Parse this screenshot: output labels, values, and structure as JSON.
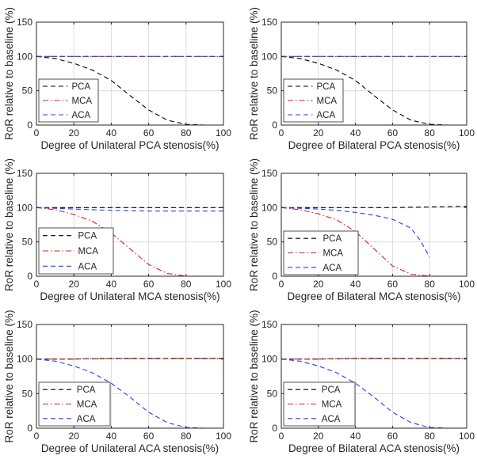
{
  "chart_data": [
    {
      "type": "line",
      "xlabel": "Degree of Unilateral PCA stenosis(%)",
      "ylabel": "RoR relative to baseline (%)",
      "xlim": [
        0,
        100
      ],
      "ylim": [
        0,
        150
      ],
      "xticks": [
        "0",
        "20",
        "40",
        "60",
        "80",
        "100"
      ],
      "yticks": [
        "0",
        "50",
        "100",
        "150"
      ],
      "grid": true,
      "legend_position": "bottom-left",
      "series": [
        {
          "name": "PCA",
          "color": "#000000",
          "dash": "dashed",
          "x": [
            0,
            10,
            20,
            30,
            40,
            50,
            60,
            70,
            80,
            90,
            100
          ],
          "y": [
            100,
            97,
            90,
            80,
            65,
            43,
            22,
            7,
            1,
            0,
            0
          ]
        },
        {
          "name": "MCA",
          "color": "#e41a1c",
          "dash": "dashdot",
          "x": [
            0,
            20,
            40,
            60,
            80,
            100
          ],
          "y": [
            100,
            100,
            100,
            100,
            100,
            100
          ]
        },
        {
          "name": "ACA",
          "color": "#1f3fff",
          "dash": "dashed",
          "x": [
            0,
            20,
            40,
            60,
            80,
            100
          ],
          "y": [
            100,
            100,
            100,
            100,
            100,
            100
          ]
        }
      ]
    },
    {
      "type": "line",
      "xlabel": "Degree of Bilateral PCA stenosis(%)",
      "ylabel": "RoR relative to baseline (%)",
      "xlim": [
        0,
        100
      ],
      "ylim": [
        0,
        150
      ],
      "xticks": [
        "0",
        "20",
        "40",
        "60",
        "80",
        "100"
      ],
      "yticks": [
        "0",
        "50",
        "100",
        "150"
      ],
      "grid": true,
      "legend_position": "bottom-left",
      "series": [
        {
          "name": "PCA",
          "color": "#000000",
          "dash": "dashed",
          "x": [
            0,
            10,
            20,
            30,
            40,
            50,
            60,
            70,
            80,
            90,
            100
          ],
          "y": [
            100,
            97,
            90,
            80,
            65,
            43,
            22,
            7,
            1,
            0,
            0
          ]
        },
        {
          "name": "MCA",
          "color": "#e41a1c",
          "dash": "dashdot",
          "x": [
            0,
            20,
            40,
            60,
            80,
            100
          ],
          "y": [
            100,
            100,
            100,
            100,
            100,
            100
          ]
        },
        {
          "name": "ACA",
          "color": "#1f3fff",
          "dash": "dashed",
          "x": [
            0,
            20,
            40,
            60,
            80,
            100
          ],
          "y": [
            100,
            100,
            100,
            100,
            100,
            100
          ]
        }
      ]
    },
    {
      "type": "line",
      "xlabel": "Degree of Unilateral MCA stenosis(%)",
      "ylabel": "RoR relative to baseline (%)",
      "xlim": [
        0,
        100
      ],
      "ylim": [
        0,
        150
      ],
      "xticks": [
        "0",
        "20",
        "40",
        "60",
        "80",
        "100"
      ],
      "yticks": [
        "0",
        "50",
        "100",
        "150"
      ],
      "grid": true,
      "legend_position": "bottom-left",
      "series": [
        {
          "name": "PCA",
          "color": "#000000",
          "dash": "dashed",
          "x": [
            0,
            20,
            40,
            60,
            80,
            100
          ],
          "y": [
            100,
            100,
            100,
            100,
            100,
            100
          ]
        },
        {
          "name": "MCA",
          "color": "#e41a1c",
          "dash": "dashdot",
          "x": [
            0,
            10,
            20,
            30,
            40,
            50,
            60,
            70,
            80,
            90,
            100
          ],
          "y": [
            100,
            97,
            90,
            80,
            63,
            40,
            17,
            4,
            0,
            0,
            0
          ]
        },
        {
          "name": "ACA",
          "color": "#1f3fff",
          "dash": "dashed",
          "x": [
            0,
            10,
            20,
            30,
            40,
            50,
            60,
            70,
            80,
            90,
            100
          ],
          "y": [
            100,
            99,
            98,
            97,
            96,
            95.5,
            95,
            95,
            95,
            95,
            95
          ]
        }
      ]
    },
    {
      "type": "line",
      "xlabel": "Degree of Bilateral MCA stenosis(%)",
      "ylabel": "RoR relative to baseline (%)",
      "xlim": [
        0,
        100
      ],
      "ylim": [
        0,
        150
      ],
      "xticks": [
        "0",
        "20",
        "40",
        "60",
        "80",
        "100"
      ],
      "yticks": [
        "0",
        "50",
        "100",
        "150"
      ],
      "grid": true,
      "legend_position": "bottom-left",
      "series": [
        {
          "name": "PCA",
          "color": "#000000",
          "dash": "dashed",
          "x": [
            0,
            20,
            40,
            60,
            80,
            100
          ],
          "y": [
            100,
            100,
            100,
            100,
            101,
            102
          ]
        },
        {
          "name": "MCA",
          "color": "#e41a1c",
          "dash": "dashdot",
          "x": [
            0,
            10,
            20,
            30,
            40,
            50,
            60,
            70,
            80,
            90,
            100
          ],
          "y": [
            100,
            97,
            91,
            82,
            65,
            40,
            15,
            3,
            0,
            0,
            0
          ]
        },
        {
          "name": "ACA",
          "color": "#1f3fff",
          "dash": "dashed",
          "x": [
            0,
            10,
            20,
            30,
            40,
            50,
            60,
            70,
            75,
            80
          ],
          "y": [
            100,
            99,
            98,
            96,
            93,
            89,
            83,
            70,
            52,
            28
          ]
        }
      ]
    },
    {
      "type": "line",
      "xlabel": "Degree of Unilateral ACA stenosis(%)",
      "ylabel": "RoR relative to baseline (%)",
      "xlim": [
        0,
        100
      ],
      "ylim": [
        0,
        150
      ],
      "xticks": [
        "0",
        "20",
        "40",
        "60",
        "80",
        "100"
      ],
      "yticks": [
        "0",
        "50",
        "100",
        "150"
      ],
      "grid": true,
      "legend_position": "bottom-left",
      "series": [
        {
          "name": "PCA",
          "color": "#000000",
          "dash": "dashed",
          "x": [
            0,
            20,
            40,
            60,
            80,
            100
          ],
          "y": [
            100,
            100,
            101,
            101,
            101,
            101
          ]
        },
        {
          "name": "MCA",
          "color": "#e41a1c",
          "dash": "dashdot",
          "x": [
            0,
            20,
            40,
            60,
            80,
            100
          ],
          "y": [
            100,
            100,
            101,
            101,
            101,
            101
          ]
        },
        {
          "name": "ACA",
          "color": "#1f3fff",
          "dash": "dashed",
          "x": [
            0,
            10,
            20,
            30,
            40,
            50,
            60,
            70,
            80,
            90,
            100
          ],
          "y": [
            100,
            97,
            90,
            80,
            65,
            45,
            23,
            8,
            1,
            0,
            0
          ]
        }
      ]
    },
    {
      "type": "line",
      "xlabel": "Degree of Bilateral ACA stenosis(%)",
      "ylabel": "RoR relative to baseline (%)",
      "xlim": [
        0,
        100
      ],
      "ylim": [
        0,
        150
      ],
      "xticks": [
        "0",
        "20",
        "40",
        "60",
        "80",
        "100"
      ],
      "yticks": [
        "0",
        "50",
        "100",
        "150"
      ],
      "grid": true,
      "legend_position": "bottom-left",
      "series": [
        {
          "name": "PCA",
          "color": "#000000",
          "dash": "dashed",
          "x": [
            0,
            20,
            40,
            60,
            80,
            100
          ],
          "y": [
            100,
            100,
            101,
            101,
            101,
            101
          ]
        },
        {
          "name": "MCA",
          "color": "#e41a1c",
          "dash": "dashdot",
          "x": [
            0,
            20,
            40,
            60,
            80,
            100
          ],
          "y": [
            100,
            100,
            101,
            101,
            101,
            101
          ]
        },
        {
          "name": "ACA",
          "color": "#1f3fff",
          "dash": "dashed",
          "x": [
            0,
            10,
            20,
            30,
            40,
            50,
            60,
            70,
            80,
            90,
            100
          ],
          "y": [
            100,
            97,
            90,
            80,
            65,
            45,
            23,
            8,
            1,
            0,
            0
          ]
        }
      ]
    }
  ]
}
